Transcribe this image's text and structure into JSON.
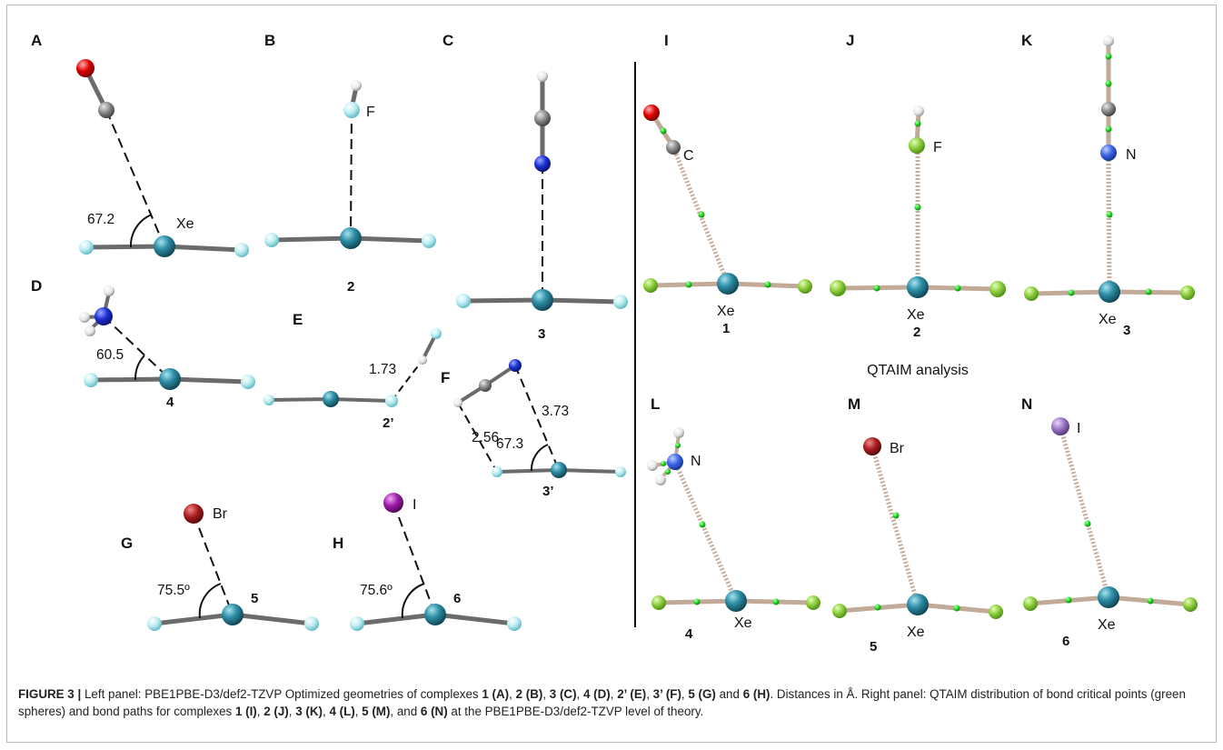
{
  "figure": {
    "center_title": "QTAIM analysis",
    "panels": {
      "A": {
        "label": "A",
        "atoms": {
          "xe": "Xe"
        },
        "angle": "67.2"
      },
      "B": {
        "label": "B",
        "atoms": {
          "f": "F"
        },
        "number": "2"
      },
      "C": {
        "label": "C",
        "number": "3"
      },
      "D": {
        "label": "D",
        "angle": "60.5",
        "number": "4"
      },
      "E": {
        "label": "E",
        "distance": "1.73",
        "number": "2’"
      },
      "F": {
        "label": "F",
        "distances": [
          "2.56",
          "3.73"
        ],
        "angle": "67.3",
        "number": "3’"
      },
      "G": {
        "label": "G",
        "atoms": {
          "br": "Br"
        },
        "angle": "75.5º",
        "number": "5"
      },
      "H": {
        "label": "H",
        "atoms": {
          "i": "I"
        },
        "angle": "75.6º",
        "number": "6"
      },
      "I": {
        "label": "I",
        "atoms": {
          "c": "C",
          "xe": "Xe"
        },
        "number": "1"
      },
      "J": {
        "label": "J",
        "atoms": {
          "f": "F",
          "xe": "Xe"
        },
        "number": "2"
      },
      "K": {
        "label": "K",
        "atoms": {
          "n": "N",
          "xe": "Xe"
        },
        "number": "3"
      },
      "L": {
        "label": "L",
        "atoms": {
          "n": "N",
          "xe": "Xe"
        },
        "number": "4"
      },
      "M": {
        "label": "M",
        "atoms": {
          "br": "Br",
          "xe": "Xe"
        },
        "number": "5"
      },
      "N": {
        "label": "N",
        "atoms": {
          "i": "I",
          "xe": "Xe"
        },
        "number": "6"
      }
    },
    "colors": {
      "xe": "#2e8ea6",
      "f_left": "#bdeef2",
      "f_right": "#8ccd3c",
      "o": "#e00000",
      "c": "#8a8a8a",
      "h": "#eeeeee",
      "n": "#1a2fd0",
      "n_right": "#3a64e6",
      "br": "#a81c1c",
      "i_left": "#9c1aa8",
      "i_right": "#9a74c6",
      "bond_left": "#6b6b6b",
      "bond_right": "#c2aa98",
      "bcp": "#22dd22"
    }
  },
  "caption": {
    "lead": "FIGURE 3 |",
    "t1": " Left panel: PBE1PBE-D3/def2-TZVP Optimized geometries of complexes ",
    "c1": "1 (A)",
    "s1": ", ",
    "c2": "2 (B)",
    "s2": ", ",
    "c3": "3 (C)",
    "s3": ", ",
    "c4": "4 (D)",
    "s4": ", ",
    "c5": "2’ (E)",
    "s5": ", ",
    "c6": "3’ (F)",
    "s6": ", ",
    "c7": "5 (G)",
    "s7": " and ",
    "c8": "6 (H)",
    "t2": ". Distances in Å. Right panel: QTAIM distribution of bond critical points (green spheres) and bond paths for complexes ",
    "r1": "1 (I)",
    "q1": ", ",
    "r2": "2 (J)",
    "q2": ", ",
    "r3": "3 (K)",
    "q3": ", ",
    "r4": "4 (L)",
    "q4": ", ",
    "r5": "5 (M)",
    "q5": ", and ",
    "r6": "6 (N)",
    "t3": " at the PBE1PBE-D3/def2-TZVP level of theory."
  }
}
